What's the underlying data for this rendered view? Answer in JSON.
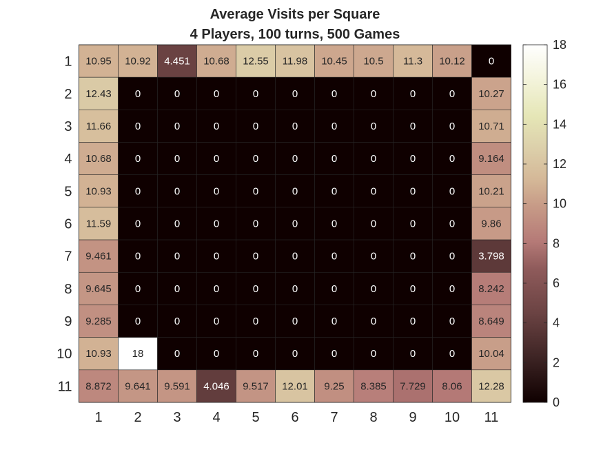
{
  "chart_data": {
    "type": "heatmap",
    "title": [
      "Average Visits per Square",
      "4 Players, 100 turns, 500 Games"
    ],
    "xlabel": "",
    "ylabel": "",
    "x_categories": [
      "1",
      "2",
      "3",
      "4",
      "5",
      "6",
      "7",
      "8",
      "9",
      "10",
      "11"
    ],
    "y_categories": [
      "1",
      "2",
      "3",
      "4",
      "5",
      "6",
      "7",
      "8",
      "9",
      "10",
      "11"
    ],
    "values": [
      [
        10.95,
        10.92,
        4.451,
        10.68,
        12.55,
        11.98,
        10.45,
        10.5,
        11.3,
        10.12,
        0
      ],
      [
        12.43,
        0,
        0,
        0,
        0,
        0,
        0,
        0,
        0,
        0,
        10.27
      ],
      [
        11.66,
        0,
        0,
        0,
        0,
        0,
        0,
        0,
        0,
        0,
        10.71
      ],
      [
        10.68,
        0,
        0,
        0,
        0,
        0,
        0,
        0,
        0,
        0,
        9.164
      ],
      [
        10.93,
        0,
        0,
        0,
        0,
        0,
        0,
        0,
        0,
        0,
        10.21
      ],
      [
        11.59,
        0,
        0,
        0,
        0,
        0,
        0,
        0,
        0,
        0,
        9.86
      ],
      [
        9.461,
        0,
        0,
        0,
        0,
        0,
        0,
        0,
        0,
        0,
        3.798
      ],
      [
        9.645,
        0,
        0,
        0,
        0,
        0,
        0,
        0,
        0,
        0,
        8.242
      ],
      [
        9.285,
        0,
        0,
        0,
        0,
        0,
        0,
        0,
        0,
        0,
        8.649
      ],
      [
        10.93,
        18,
        0,
        0,
        0,
        0,
        0,
        0,
        0,
        0,
        10.04
      ],
      [
        8.872,
        9.641,
        9.591,
        4.046,
        9.517,
        12.01,
        9.25,
        8.385,
        7.729,
        8.06,
        12.28
      ]
    ],
    "colorbar": {
      "range": [
        0,
        18
      ],
      "ticks": [
        0,
        2,
        4,
        6,
        8,
        10,
        12,
        14,
        16,
        18
      ],
      "colormap": "pink",
      "colormap_stops": [
        {
          "v": 0.0,
          "color": "#0f0000"
        },
        {
          "v": 0.125,
          "color": "#3d2424"
        },
        {
          "v": 0.25,
          "color": "#6b4343"
        },
        {
          "v": 0.375,
          "color": "#8f5b5b"
        },
        {
          "v": 0.45,
          "color": "#b57a77"
        },
        {
          "v": 0.55,
          "color": "#c79b87"
        },
        {
          "v": 0.62,
          "color": "#d4b797"
        },
        {
          "v": 0.72,
          "color": "#ddd2ac"
        },
        {
          "v": 0.8,
          "color": "#e5e6b6"
        },
        {
          "v": 0.9,
          "color": "#f3f3da"
        },
        {
          "v": 1.0,
          "color": "#ffffff"
        }
      ]
    },
    "grid": true,
    "legend": "right"
  }
}
